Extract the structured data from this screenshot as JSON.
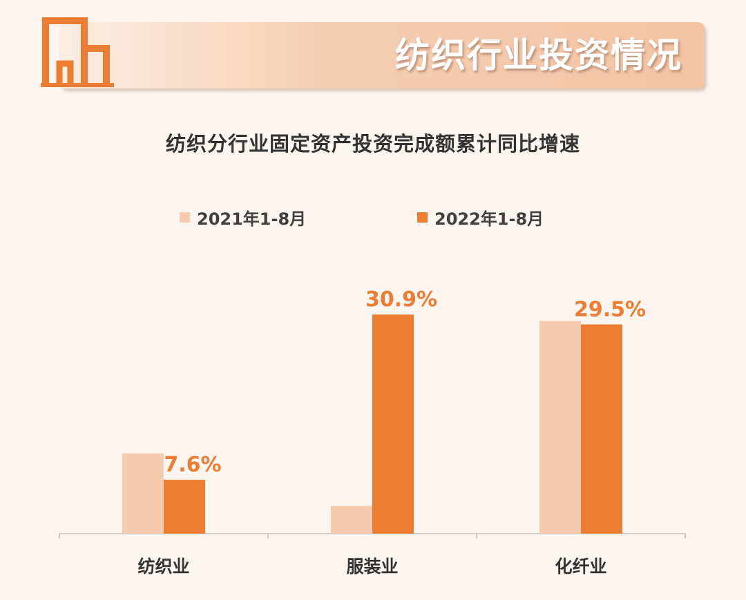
{
  "header": {
    "title": "纺织行业投资情况"
  },
  "colors": {
    "series_2021": "#f6cbae",
    "series_2022": "#ec7d32",
    "accent": "#ec7d32",
    "axis": "#bfbfbf",
    "category_label": "#333333"
  },
  "chart_data": {
    "type": "bar",
    "title": "纺织分行业固定资产投资完成额累计同比增速",
    "categories": [
      "纺织业",
      "服装业",
      "化纤业"
    ],
    "series": [
      {
        "name": "2021年1-8月",
        "values": [
          11.3,
          3.9,
          30.0
        ],
        "labels": [
          "",
          "",
          ""
        ]
      },
      {
        "name": "2022年1-8月",
        "values": [
          7.6,
          30.9,
          29.5
        ],
        "labels": [
          "7.6%",
          "30.9%",
          "29.5%"
        ]
      }
    ],
    "ylim": [
      0,
      30.9
    ],
    "grid": false,
    "legend": "top-center"
  }
}
